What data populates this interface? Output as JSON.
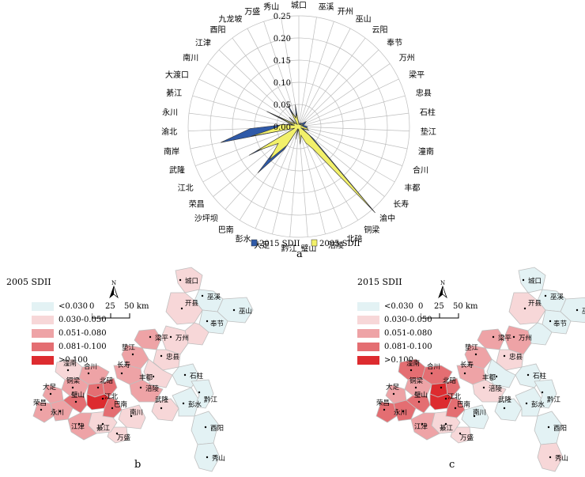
{
  "panel_labels": {
    "a": "a",
    "b": "b",
    "c": "c"
  },
  "chart_data": {
    "type": "radar",
    "radial_ticks": [
      "0.00",
      "0.05",
      "0.10",
      "0.15",
      "0.20",
      "0.25"
    ],
    "rmax": 0.25,
    "categories": [
      "城口",
      "巫溪",
      "开州",
      "巫山",
      "云阳",
      "奉节",
      "万州",
      "梁平",
      "忠县",
      "石柱",
      "垫江",
      "潼南",
      "合川",
      "丰都",
      "长寿",
      "渝中",
      "铜梁",
      "北碚",
      "涪陵",
      "璧山",
      "黔江",
      "大足",
      "彭水",
      "巴南",
      "沙坪坝",
      "荣昌",
      "江北",
      "武隆",
      "南岸",
      "渝北",
      "永川",
      "綦江",
      "大渡口",
      "南川",
      "江津",
      "酉阳",
      "九龙坡",
      "万盛",
      "秀山"
    ],
    "series": [
      {
        "name": "2015 SDII",
        "color": "#2f5aa8",
        "values": [
          0.005,
          0.005,
          0.01,
          0.005,
          0.01,
          0.01,
          0.02,
          0.015,
          0.01,
          0.015,
          0.02,
          0.015,
          0.025,
          0.01,
          0.04,
          0.26,
          0.05,
          0.03,
          0.02,
          0.03,
          0.005,
          0.02,
          0.005,
          0.06,
          0.14,
          0.045,
          0.13,
          0.01,
          0.18,
          0.11,
          0.035,
          0.015,
          0.08,
          0.01,
          0.03,
          0.005,
          0.06,
          0.02,
          0.05
        ]
      },
      {
        "name": "2005 SDII",
        "color": "#f2f06a",
        "values": [
          0.005,
          0.005,
          0.005,
          0.005,
          0.005,
          0.005,
          0.01,
          0.01,
          0.005,
          0.01,
          0.01,
          0.02,
          0.02,
          0.005,
          0.03,
          0.255,
          0.06,
          0.04,
          0.02,
          0.04,
          0.005,
          0.03,
          0.005,
          0.05,
          0.1,
          0.06,
          0.11,
          0.01,
          0.11,
          0.05,
          0.04,
          0.01,
          0.06,
          0.01,
          0.03,
          0.005,
          0.04,
          0.02,
          0.03
        ]
      }
    ]
  },
  "maps": [
    {
      "title": "2005   SDII",
      "legend": [
        {
          "label": "<0.030",
          "color": "#e3f2f4"
        },
        {
          "label": "0.030-0.050",
          "color": "#f7d7d8"
        },
        {
          "label": "0.051-0.080",
          "color": "#eea3a6"
        },
        {
          "label": "0.081-0.100",
          "color": "#e46e72"
        },
        {
          "label": ">0.100",
          "color": "#dd2b2f"
        }
      ],
      "scale": {
        "labels": [
          "0",
          "25",
          "50 km"
        ]
      },
      "north": "N",
      "regions": {
        "chengkou": "#f7d7d8",
        "wuxi": "#e3f2f4",
        "wushan": "#e3f2f4",
        "kaixian": "#f7d7d8",
        "fengjie": "#e3f2f4",
        "yunyang": "#f7d7d8",
        "wanzhou": "#f7d7d8",
        "liangping": "#eea3a6",
        "zhongxian": "#f7d7d8",
        "dianjiang": "#eea3a6",
        "shizhu": "#e3f2f4",
        "fengdu": "#f7d7d8",
        "changshou": "#eea3a6",
        "fuling": "#eea3a6",
        "wulong": "#f7d7d8",
        "pengshui": "#e3f2f4",
        "qianjiang": "#e3f2f4",
        "youyang": "#e3f2f4",
        "xiushan": "#e3f2f4",
        "nanchuan": "#f7d7d8",
        "wansheng": "#f7d7d8",
        "qijiang": "#f7d7d8",
        "tongnan": "#f7d7d8",
        "hechuan": "#eea3a6",
        "tongliang": "#eea3a6",
        "dazu": "#eea3a6",
        "rongchang": "#eea3a6",
        "yongchuan": "#eea3a6",
        "jiangjin": "#eea3a6",
        "bishan": "#e46e72",
        "beibei": "#e46e72",
        "yubei": "#e46e72",
        "core": "#dd2b2f",
        "banan": "#e46e72"
      },
      "labels": [
        "城口",
        "巫溪",
        "开县",
        "奉节",
        "巫山",
        "万州",
        "梁平",
        "忠县",
        "垫江",
        "石柱",
        "丰都",
        "长寿",
        "涪陵",
        "潼南",
        "合川",
        "铜梁",
        "北碚",
        "大足",
        "璧山",
        "江北",
        "荣昌",
        "永川",
        "江津",
        "巴南",
        "綦江",
        "万盛",
        "南川",
        "武隆",
        "彭水",
        "黔江",
        "酉阳",
        "秀山"
      ]
    },
    {
      "title": "2015   SDII",
      "legend": [
        {
          "label": "<0.030",
          "color": "#e3f2f4"
        },
        {
          "label": "0.030-0.050",
          "color": "#f7d7d8"
        },
        {
          "label": "0.051-0.080",
          "color": "#eea3a6"
        },
        {
          "label": "0.081-0.100",
          "color": "#e46e72"
        },
        {
          "label": ">0.100",
          "color": "#dd2b2f"
        }
      ],
      "scale": {
        "labels": [
          "0",
          "25",
          "50 km"
        ]
      },
      "north": "N",
      "regions": {
        "chengkou": "#e3f2f4",
        "wuxi": "#e3f2f4",
        "wushan": "#e3f2f4",
        "kaixian": "#f7d7d8",
        "fengjie": "#e3f2f4",
        "yunyang": "#e3f2f4",
        "wanzhou": "#eea3a6",
        "liangping": "#eea3a6",
        "zhongxian": "#f7d7d8",
        "dianjiang": "#eea3a6",
        "shizhu": "#e3f2f4",
        "fengdu": "#e3f2f4",
        "changshou": "#eea3a6",
        "fuling": "#f7d7d8",
        "wulong": "#e3f2f4",
        "pengshui": "#e3f2f4",
        "qianjiang": "#e3f2f4",
        "youyang": "#e3f2f4",
        "xiushan": "#f7d7d8",
        "nanchuan": "#e3f2f4",
        "wansheng": "#f7d7d8",
        "qijiang": "#f7d7d8",
        "tongnan": "#e46e72",
        "hechuan": "#e46e72",
        "tongliang": "#eea3a6",
        "dazu": "#eea3a6",
        "rongchang": "#e46e72",
        "yongchuan": "#e46e72",
        "jiangjin": "#eea3a6",
        "bishan": "#e46e72",
        "beibei": "#dd2b2f",
        "yubei": "#e46e72",
        "core": "#dd2b2f",
        "banan": "#e46e72"
      },
      "labels": [
        "城口",
        "巫溪",
        "开县",
        "奉节",
        "巫山",
        "万州",
        "梁平",
        "忠县",
        "垫江",
        "石柱",
        "丰都",
        "长寿",
        "涪陵",
        "潼南",
        "合川",
        "铜梁",
        "北碚",
        "大足",
        "璧山",
        "江北",
        "荣昌",
        "永川",
        "江津",
        "巴南",
        "綦江",
        "万盛",
        "南川",
        "武隆",
        "彭水",
        "黔江",
        "酉阳",
        "秀山"
      ]
    }
  ]
}
